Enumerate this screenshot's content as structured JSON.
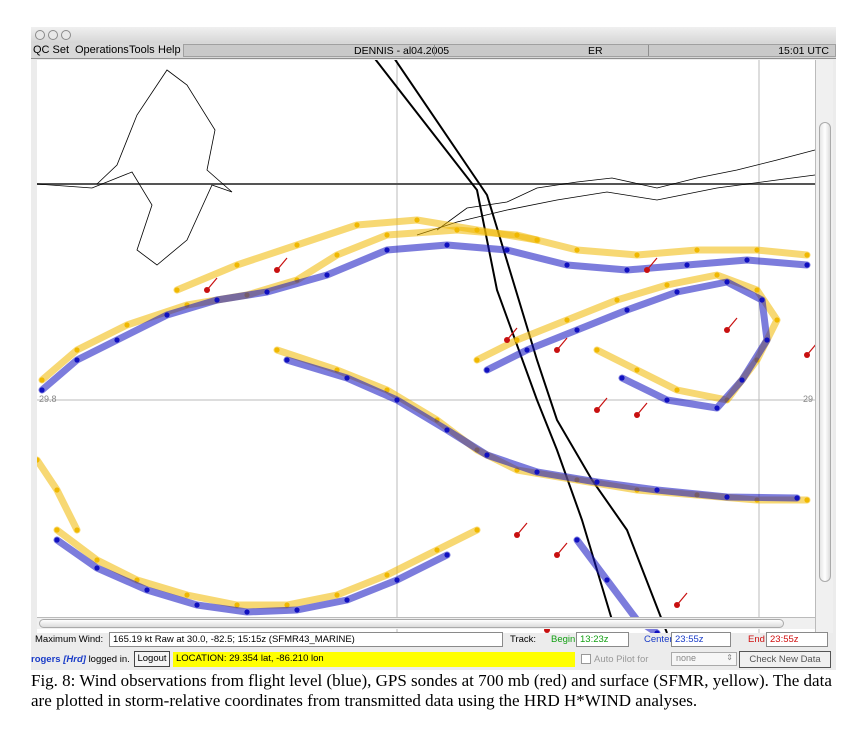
{
  "window": {
    "menu": [
      "QC Set",
      "Operations",
      "Tools",
      "Help"
    ],
    "storm_title": "DENNIS - al04.2005",
    "storm_code": "ER",
    "clock": "15:01 UTC"
  },
  "map": {
    "lat_label_left": "29.8",
    "lat_label_right": "29",
    "colors": {
      "flight_level": "#1010c0",
      "gps_sondes_700mb": "#c81010",
      "sfmr_surface": "#f0b800",
      "track": "#000000",
      "coastline": "#000000",
      "grid": "#bbbbbb"
    }
  },
  "status": {
    "max_wind_label": "Maximum Wind:",
    "max_wind_value": "165.19 kt Raw at 30.0,  -82.5; 15:15z (SFMR43_MARINE)",
    "track_label": "Track:",
    "begin_label": "Begin",
    "begin_value": "13:23z",
    "center_label": "Center",
    "center_value": "23:55z",
    "end_label": "End",
    "end_value": "23:55z",
    "user_name": "rogers",
    "user_role": "[Hrd]",
    "logged_in_text": "logged in.",
    "logout_label": "Logout",
    "location": "LOCATION: 29.354 lat,  -86.210 lon",
    "autopilot_label": "Auto Pilot for",
    "autopilot_select": "none",
    "check_button": "Check New Data"
  },
  "caption": "Fig. 8: Wind observations from flight level (blue), GPS sondes at 700 mb (red) and surface (SFMR, yellow). The data are plotted in storm-relative coordinates from transmitted data using the HRD H*WIND analyses."
}
